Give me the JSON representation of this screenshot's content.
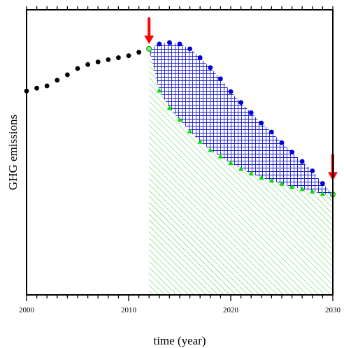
{
  "chart_data": {
    "type": "scatter",
    "title": "",
    "xlabel": "time (year)",
    "ylabel": "GHG emissions",
    "xlim": [
      2000,
      2030
    ],
    "ylim": [
      0,
      100
    ],
    "x_ticks": [
      "2000",
      "2010",
      "2020",
      "2030"
    ],
    "y_tick_labels_shown": false,
    "grid": false,
    "legend": null,
    "series": [
      {
        "marker": "circle",
        "color": "#000000",
        "x": [
          2000,
          2001,
          2002,
          2003,
          2004,
          2005,
          2006,
          2007,
          2008,
          2009,
          2010,
          2011
        ],
        "y": [
          71.5,
          72.5,
          73.3,
          75.3,
          77.2,
          79.4,
          80.8,
          81.7,
          82.5,
          83.2,
          83.9,
          85.1
        ]
      },
      {
        "marker": "circle",
        "color": "#0000dd",
        "x": [
          2013,
          2014,
          2015,
          2016,
          2017,
          2018,
          2019,
          2020,
          2021,
          2022,
          2023,
          2024,
          2025,
          2026,
          2027,
          2028,
          2029
        ],
        "y": [
          88.0,
          88.5,
          88.0,
          86.3,
          83.2,
          79.7,
          75.8,
          71.3,
          67.5,
          63.9,
          60.3,
          57.1,
          53.4,
          50.1,
          46.8,
          43.5,
          39.1
        ]
      },
      {
        "marker": "triangle",
        "color": "#00dd00",
        "x": [
          2013,
          2014,
          2015,
          2016,
          2017,
          2018,
          2019,
          2020,
          2021,
          2022,
          2023,
          2024,
          2025,
          2026,
          2027,
          2028,
          2029
        ],
        "y": [
          71.7,
          65.6,
          61.5,
          57.4,
          53.7,
          50.8,
          48.6,
          46.3,
          44.2,
          42.6,
          41.1,
          40.1,
          39.0,
          37.9,
          37.1,
          36.3,
          35.5
        ]
      },
      {
        "marker": "open-circle",
        "color": "#22aa22",
        "x": [
          2012,
          2030
        ],
        "y": [
          86.3,
          35.2
        ]
      }
    ],
    "regions": [
      {
        "fill": "crosshatch",
        "color": "#0000cc",
        "between": "blue and green series"
      },
      {
        "fill": "diagonal-hatch",
        "color": "#33cc33",
        "between": "green series and x-axis"
      }
    ],
    "annotations": [
      {
        "type": "arrow-down",
        "color": "#ff0000",
        "x": 2012
      },
      {
        "type": "arrow-down",
        "color": "#ff0000",
        "x": 2030
      }
    ]
  }
}
